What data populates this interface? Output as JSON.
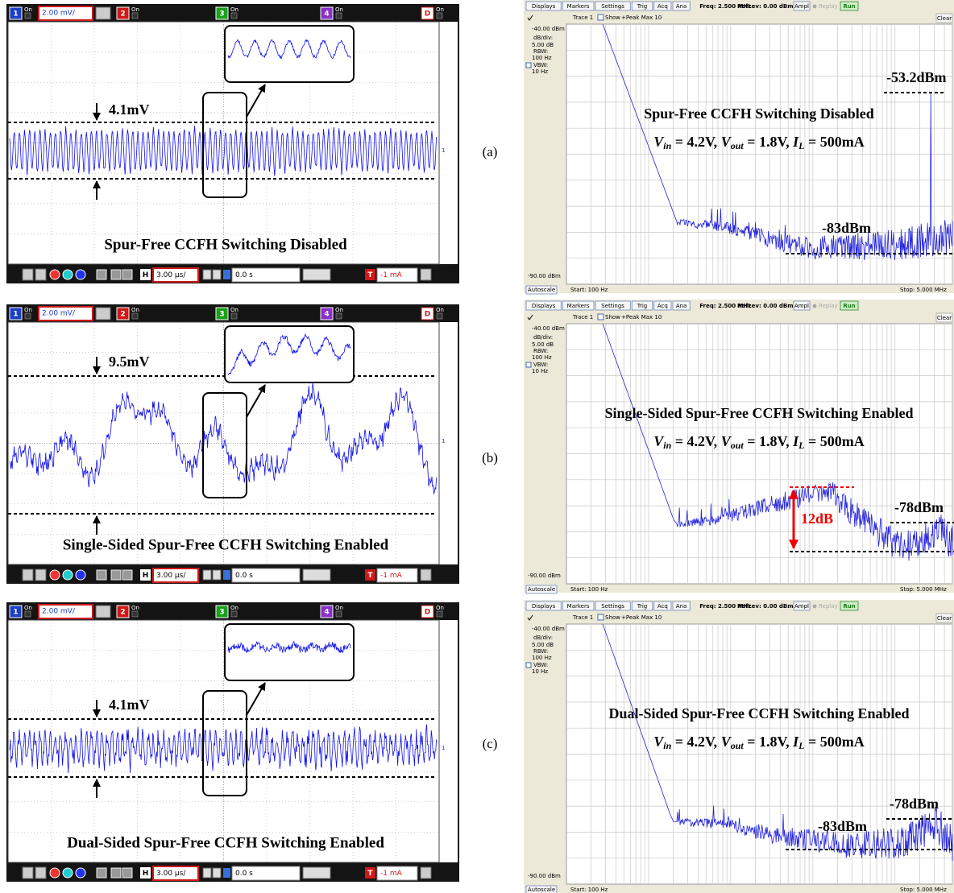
{
  "scope_ui": {
    "channels": [
      "1",
      "2",
      "3",
      "4",
      "D"
    ],
    "on": "On",
    "h": "H",
    "t": "T"
  },
  "analyzer_ui": {
    "buttons": [
      "Displays",
      "Markers",
      "Settings",
      "Trig",
      "Acq",
      "Ana"
    ],
    "freq": "Freq: 2.500 MHz",
    "reflev": "RefLev: 0.00 dBm",
    "ampl": "Ampl",
    "replay": "Replay",
    "run": "Run",
    "trace": "Trace 1",
    "show": "Show",
    "peak": "+Peak Max 10",
    "clear": "Clear",
    "top": "-40.00 dBm",
    "bottom": "-90.00 dBm",
    "side": [
      "dB/div:",
      "5.00 dB",
      "RBW:",
      "100 Hz",
      "VBW:",
      "10 Hz"
    ],
    "autoscale": "Autoscale",
    "start": "Start: 100 Hz",
    "stop": "Stop: 5.000 MHz"
  },
  "panels": [
    {
      "label": "(a)",
      "scope": {
        "volts": "2.00 mV/",
        "time": "3.00 µs/",
        "delay": "0.0 s",
        "trigger": "-1 mA",
        "ripple": "4.1mV",
        "caption": "Spur-Free CCFH Switching Disabled"
      },
      "spectrum": {
        "title": "Spur-Free CCFH Switching Disabled",
        "condition": [
          {
            "var": "V",
            "sub": "in",
            "rest": " = 4.2V, "
          },
          {
            "var": "V",
            "sub": "out",
            "rest": " = 1.8V, "
          },
          {
            "var": "I",
            "sub": "L",
            "rest": " = 500mA"
          }
        ],
        "annotations": [
          "-53.2dBm",
          "-83dBm"
        ]
      }
    },
    {
      "label": "(b)",
      "scope": {
        "volts": "2.00 mV/",
        "time": "3.00 µs/",
        "delay": "0.0 s",
        "trigger": "-1 mA",
        "ripple": "9.5mV",
        "caption": "Single-Sided Spur-Free CCFH Switching Enabled"
      },
      "spectrum": {
        "title": "Single-Sided Spur-Free CCFH Switching Enabled",
        "condition": [
          {
            "var": "V",
            "sub": "in",
            "rest": " = 4.2V, "
          },
          {
            "var": "V",
            "sub": "out",
            "rest": " = 1.8V, "
          },
          {
            "var": "I",
            "sub": "L",
            "rest": " = 500mA"
          }
        ],
        "annotations": [
          "-78dBm",
          "12dB"
        ]
      }
    },
    {
      "label": "(c)",
      "scope": {
        "volts": "2.00 mV/",
        "time": "3.00 µs/",
        "delay": "0.0 s",
        "trigger": "-1 mA",
        "ripple": "4.1mV",
        "caption": "Dual-Sided Spur-Free CCFH Switching Enabled"
      },
      "spectrum": {
        "title": "Dual-Sided Spur-Free CCFH Switching Enabled",
        "condition": [
          {
            "var": "V",
            "sub": "in",
            "rest": " = 4.2V, "
          },
          {
            "var": "V",
            "sub": "out",
            "rest": " = 1.8V, "
          },
          {
            "var": "I",
            "sub": "L",
            "rest": " = 500mA"
          }
        ],
        "annotations": [
          "-78dBm",
          "-83dBm"
        ]
      }
    }
  ]
}
